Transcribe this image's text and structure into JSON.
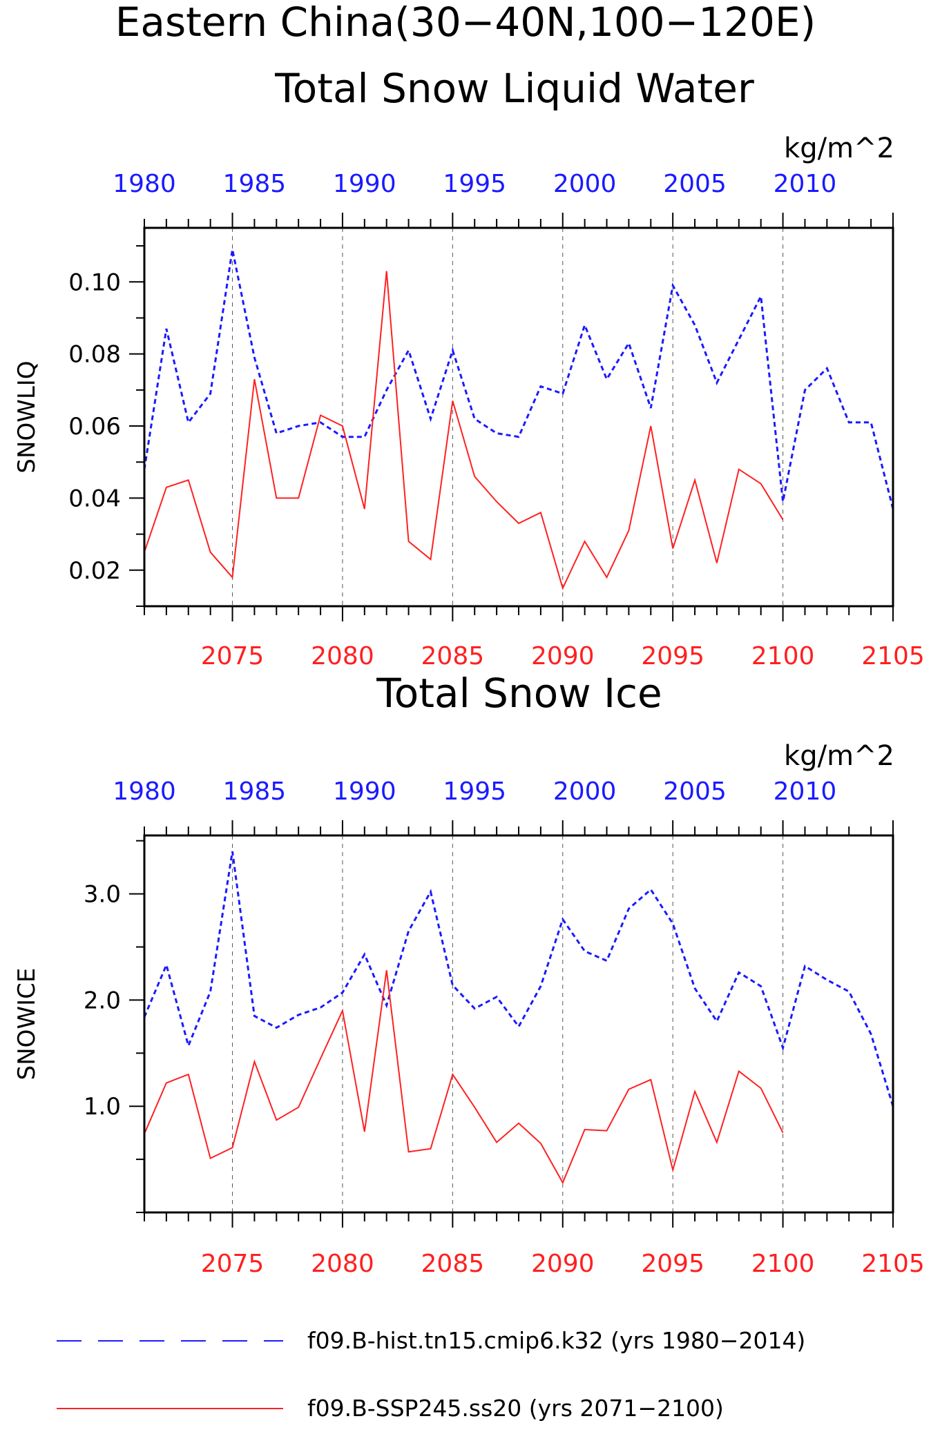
{
  "header": {
    "title_line1": "Eastern China(30−40N,100−120E)",
    "title_line2": "Total Snow Liquid Water"
  },
  "colors": {
    "hist": "#1a1aff",
    "ssp": "#ff2020",
    "axis": "#000000",
    "grid": "#555555"
  },
  "chart_data": [
    {
      "type": "line",
      "title": "Total Snow Liquid Water",
      "units": "kg/m^2",
      "ylabel": "SNOWLIQ",
      "ylim": [
        0.01,
        0.115
      ],
      "yticks": [
        0.02,
        0.04,
        0.06,
        0.08,
        0.1
      ],
      "ytick_labels": [
        "0.02",
        "0.04",
        "0.06",
        "0.08",
        "0.10"
      ],
      "x_bottom_ticks": [
        2075,
        2080,
        2085,
        2090,
        2095,
        2100,
        2105
      ],
      "x_top_ticks": [
        1980,
        1985,
        1990,
        1995,
        2000,
        2005,
        2010
      ],
      "grid_at": [
        2075,
        2080,
        2085,
        2090,
        2095,
        2100
      ],
      "series": [
        {
          "name": "f09.B-hist.tn15.cmip6.k32 (yrs 1980-2014)",
          "axis": "top",
          "style": "dashed",
          "x": [
            1980,
            1981,
            1982,
            1983,
            1984,
            1985,
            1986,
            1987,
            1988,
            1989,
            1990,
            1991,
            1992,
            1993,
            1994,
            1995,
            1996,
            1997,
            1998,
            1999,
            2000,
            2001,
            2002,
            2003,
            2004,
            2005,
            2006,
            2007,
            2008,
            2009,
            2010,
            2011,
            2012,
            2013,
            2014
          ],
          "values": [
            0.048,
            0.087,
            0.061,
            0.069,
            0.109,
            0.079,
            0.058,
            0.06,
            0.061,
            0.057,
            0.057,
            0.07,
            0.081,
            0.062,
            0.081,
            0.062,
            0.058,
            0.057,
            0.071,
            0.069,
            0.088,
            0.073,
            0.083,
            0.065,
            0.099,
            0.088,
            0.072,
            0.084,
            0.096,
            0.039,
            0.07,
            0.076,
            0.061,
            0.061,
            0.037
          ]
        },
        {
          "name": "f09.B-SSP245.ss20 (yrs 2071-2100)",
          "axis": "bottom",
          "style": "solid",
          "x": [
            2071,
            2072,
            2073,
            2074,
            2075,
            2076,
            2077,
            2078,
            2079,
            2080,
            2081,
            2082,
            2083,
            2084,
            2085,
            2086,
            2087,
            2088,
            2089,
            2090,
            2091,
            2092,
            2093,
            2094,
            2095,
            2096,
            2097,
            2098,
            2099,
            2100
          ],
          "values": [
            0.025,
            0.043,
            0.045,
            0.025,
            0.018,
            0.073,
            0.04,
            0.04,
            0.063,
            0.06,
            0.037,
            0.103,
            0.028,
            0.023,
            0.067,
            0.046,
            0.039,
            0.033,
            0.036,
            0.015,
            0.028,
            0.018,
            0.031,
            0.06,
            0.026,
            0.045,
            0.022,
            0.048,
            0.044,
            0.034
          ]
        }
      ]
    },
    {
      "type": "line",
      "title": "Total Snow Ice",
      "units": "kg/m^2",
      "ylabel": "SNOWICE",
      "ylim": [
        0.0,
        3.55
      ],
      "yticks": [
        1.0,
        2.0,
        3.0
      ],
      "ytick_labels": [
        "1.0",
        "2.0",
        "3.0"
      ],
      "x_bottom_ticks": [
        2075,
        2080,
        2085,
        2090,
        2095,
        2100,
        2105
      ],
      "x_top_ticks": [
        1980,
        1985,
        1990,
        1995,
        2000,
        2005,
        2010
      ],
      "grid_at": [
        2075,
        2080,
        2085,
        2090,
        2095,
        2100
      ],
      "series": [
        {
          "name": "f09.B-hist.tn15.cmip6.k32 (yrs 1980-2014)",
          "axis": "top",
          "style": "dashed",
          "x": [
            1980,
            1981,
            1982,
            1983,
            1984,
            1985,
            1986,
            1987,
            1988,
            1989,
            1990,
            1991,
            1992,
            1993,
            1994,
            1995,
            1996,
            1997,
            1998,
            1999,
            2000,
            2001,
            2002,
            2003,
            2004,
            2005,
            2006,
            2007,
            2008,
            2009,
            2010,
            2011,
            2012,
            2013,
            2014
          ],
          "values": [
            1.84,
            2.33,
            1.57,
            2.08,
            3.4,
            1.85,
            1.74,
            1.86,
            1.93,
            2.07,
            2.43,
            1.95,
            2.65,
            3.02,
            2.14,
            1.92,
            2.03,
            1.75,
            2.13,
            2.76,
            2.46,
            2.37,
            2.86,
            3.04,
            2.72,
            2.11,
            1.8,
            2.26,
            2.13,
            1.55,
            2.32,
            2.19,
            2.08,
            1.68,
            1.0
          ]
        },
        {
          "name": "f09.B-SSP245.ss20 (yrs 2071-2100)",
          "axis": "bottom",
          "style": "solid",
          "x": [
            2071,
            2072,
            2073,
            2074,
            2075,
            2076,
            2077,
            2078,
            2079,
            2080,
            2081,
            2082,
            2083,
            2084,
            2085,
            2086,
            2087,
            2088,
            2089,
            2090,
            2091,
            2092,
            2093,
            2094,
            2095,
            2096,
            2097,
            2098,
            2099,
            2100
          ],
          "values": [
            0.74,
            1.22,
            1.3,
            0.51,
            0.61,
            1.42,
            0.87,
            0.99,
            1.45,
            1.9,
            0.76,
            2.28,
            0.57,
            0.6,
            1.3,
            0.99,
            0.66,
            0.84,
            0.65,
            0.28,
            0.78,
            0.77,
            1.16,
            1.25,
            0.4,
            1.14,
            0.66,
            1.33,
            1.17,
            0.75
          ]
        }
      ]
    }
  ],
  "legend": [
    {
      "label": "f09.B-hist.tn15.cmip6.k32 (yrs 1980−2014)",
      "style": "dashed",
      "color": "#1a1aff"
    },
    {
      "label": "f09.B-SSP245.ss20 (yrs 2071−2100)",
      "style": "solid",
      "color": "#ff2020"
    }
  ]
}
